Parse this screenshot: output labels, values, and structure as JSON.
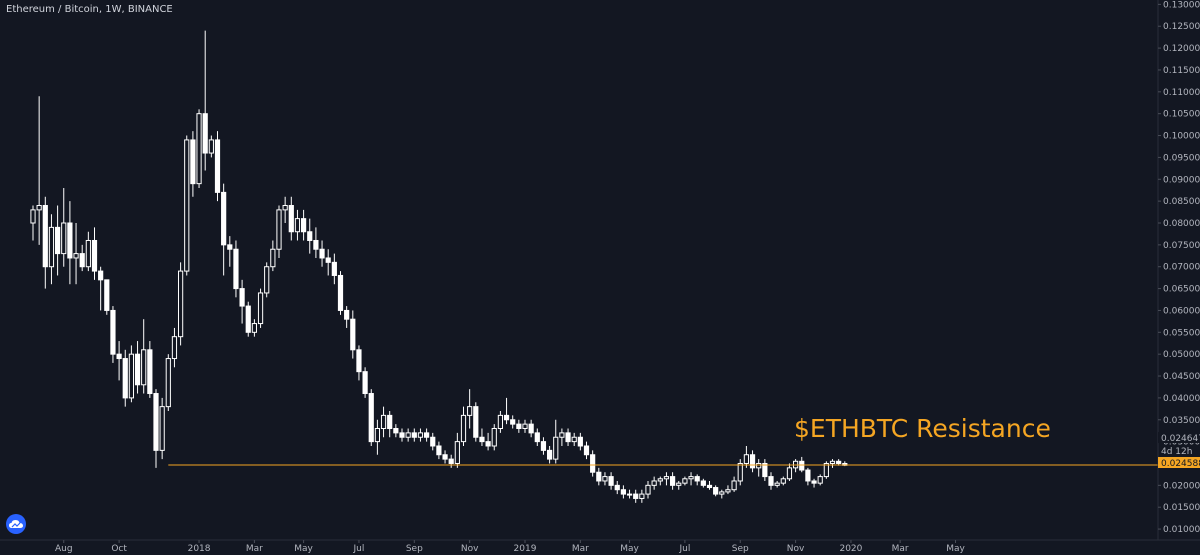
{
  "header": {
    "title": "Ethereum / Bitcoin, 1W, BINANCE"
  },
  "colors": {
    "background": "#131722",
    "candle": "#ffffff",
    "resistance": "#f5a623",
    "axis_text": "#b2b5be",
    "grid": "#1e222d"
  },
  "countdown": "4d 12h",
  "logo_icon": "tradingview-cloud-icon",
  "chart_data": {
    "type": "candlestick",
    "title": "Ethereum / Bitcoin, 1W, BINANCE",
    "ylim": [
      0.0075,
      0.131
    ],
    "y_ticks": [
      0.01,
      0.015,
      0.02,
      0.025,
      0.03,
      0.035,
      0.04,
      0.045,
      0.05,
      0.055,
      0.06,
      0.065,
      0.07,
      0.075,
      0.08,
      0.085,
      0.09,
      0.095,
      0.1,
      0.105,
      0.11,
      0.115,
      0.12,
      0.125,
      0.13
    ],
    "y_tick_labels": [
      "0.010000",
      "0.015000",
      "0.020000",
      "0.025000",
      "0.030000",
      "0.035000",
      "0.040000",
      "0.045000",
      "0.050000",
      "0.055000",
      "0.060000",
      "0.065000",
      "0.070000",
      "0.075000",
      "0.080000",
      "0.085000",
      "0.090000",
      "0.095000",
      "0.100000",
      "0.105000",
      "0.110000",
      "0.115000",
      "0.120000",
      "0.125000",
      "0.130000"
    ],
    "x_ticks": [
      {
        "label": "Aug",
        "index": 5
      },
      {
        "label": "Oct",
        "index": 14
      },
      {
        "label": "2018",
        "index": 27
      },
      {
        "label": "Mar",
        "index": 36
      },
      {
        "label": "May",
        "index": 44
      },
      {
        "label": "Jul",
        "index": 53
      },
      {
        "label": "Sep",
        "index": 62
      },
      {
        "label": "Nov",
        "index": 71
      },
      {
        "label": "2019",
        "index": 80
      },
      {
        "label": "Mar",
        "index": 89
      },
      {
        "label": "May",
        "index": 97
      },
      {
        "label": "Jul",
        "index": 106
      },
      {
        "label": "Sep",
        "index": 115
      },
      {
        "label": "Nov",
        "index": 124
      },
      {
        "label": "2020",
        "index": 133
      },
      {
        "label": "Mar",
        "index": 141
      },
      {
        "label": "May",
        "index": 150
      }
    ],
    "resistance": {
      "value": 0.024647,
      "label": "$ETHBTC Resistance",
      "start_index": 22
    },
    "price_labels": {
      "resistance": "0.024647",
      "last": "0.024588"
    },
    "candles": [
      [
        0.08,
        0.084,
        0.076,
        0.083
      ],
      [
        0.083,
        0.109,
        0.075,
        0.084
      ],
      [
        0.084,
        0.086,
        0.065,
        0.07
      ],
      [
        0.07,
        0.082,
        0.066,
        0.079
      ],
      [
        0.079,
        0.084,
        0.068,
        0.073
      ],
      [
        0.073,
        0.088,
        0.07,
        0.08
      ],
      [
        0.08,
        0.085,
        0.066,
        0.072
      ],
      [
        0.072,
        0.08,
        0.066,
        0.073
      ],
      [
        0.073,
        0.075,
        0.069,
        0.07
      ],
      [
        0.07,
        0.078,
        0.069,
        0.076
      ],
      [
        0.076,
        0.079,
        0.067,
        0.069
      ],
      [
        0.069,
        0.07,
        0.06,
        0.067
      ],
      [
        0.067,
        0.067,
        0.059,
        0.06
      ],
      [
        0.06,
        0.061,
        0.048,
        0.05
      ],
      [
        0.05,
        0.053,
        0.044,
        0.049
      ],
      [
        0.049,
        0.051,
        0.038,
        0.04
      ],
      [
        0.04,
        0.052,
        0.039,
        0.05
      ],
      [
        0.05,
        0.053,
        0.041,
        0.043
      ],
      [
        0.043,
        0.058,
        0.041,
        0.051
      ],
      [
        0.051,
        0.053,
        0.04,
        0.041
      ],
      [
        0.041,
        0.042,
        0.024,
        0.028
      ],
      [
        0.028,
        0.04,
        0.026,
        0.038
      ],
      [
        0.038,
        0.05,
        0.037,
        0.049
      ],
      [
        0.049,
        0.056,
        0.047,
        0.054
      ],
      [
        0.054,
        0.071,
        0.052,
        0.069
      ],
      [
        0.069,
        0.1,
        0.068,
        0.099
      ],
      [
        0.099,
        0.101,
        0.086,
        0.089
      ],
      [
        0.089,
        0.106,
        0.088,
        0.105
      ],
      [
        0.105,
        0.124,
        0.092,
        0.096
      ],
      [
        0.096,
        0.1,
        0.095,
        0.099
      ],
      [
        0.099,
        0.101,
        0.085,
        0.087
      ],
      [
        0.087,
        0.089,
        0.068,
        0.075
      ],
      [
        0.075,
        0.077,
        0.07,
        0.074
      ],
      [
        0.074,
        0.076,
        0.063,
        0.065
      ],
      [
        0.065,
        0.067,
        0.057,
        0.061
      ],
      [
        0.061,
        0.062,
        0.054,
        0.055
      ],
      [
        0.055,
        0.058,
        0.054,
        0.057
      ],
      [
        0.057,
        0.065,
        0.056,
        0.064
      ],
      [
        0.064,
        0.071,
        0.063,
        0.07
      ],
      [
        0.07,
        0.076,
        0.069,
        0.074
      ],
      [
        0.074,
        0.084,
        0.072,
        0.083
      ],
      [
        0.083,
        0.086,
        0.08,
        0.084
      ],
      [
        0.084,
        0.086,
        0.076,
        0.078
      ],
      [
        0.078,
        0.083,
        0.076,
        0.081
      ],
      [
        0.081,
        0.083,
        0.076,
        0.078
      ],
      [
        0.078,
        0.081,
        0.073,
        0.076
      ],
      [
        0.076,
        0.079,
        0.072,
        0.074
      ],
      [
        0.074,
        0.076,
        0.07,
        0.072
      ],
      [
        0.072,
        0.074,
        0.068,
        0.071
      ],
      [
        0.071,
        0.073,
        0.066,
        0.068
      ],
      [
        0.068,
        0.069,
        0.059,
        0.06
      ],
      [
        0.06,
        0.061,
        0.056,
        0.058
      ],
      [
        0.058,
        0.06,
        0.049,
        0.051
      ],
      [
        0.051,
        0.052,
        0.044,
        0.046
      ],
      [
        0.046,
        0.047,
        0.04,
        0.041
      ],
      [
        0.041,
        0.042,
        0.029,
        0.03
      ],
      [
        0.03,
        0.035,
        0.027,
        0.033
      ],
      [
        0.033,
        0.038,
        0.031,
        0.036
      ],
      [
        0.036,
        0.037,
        0.031,
        0.033
      ],
      [
        0.033,
        0.034,
        0.031,
        0.032
      ],
      [
        0.032,
        0.033,
        0.03,
        0.031
      ],
      [
        0.031,
        0.033,
        0.03,
        0.032
      ],
      [
        0.032,
        0.033,
        0.03,
        0.031
      ],
      [
        0.031,
        0.033,
        0.03,
        0.032
      ],
      [
        0.032,
        0.033,
        0.03,
        0.031
      ],
      [
        0.031,
        0.032,
        0.028,
        0.029
      ],
      [
        0.029,
        0.03,
        0.026,
        0.027
      ],
      [
        0.027,
        0.028,
        0.025,
        0.026
      ],
      [
        0.026,
        0.027,
        0.024,
        0.025
      ],
      [
        0.025,
        0.032,
        0.024,
        0.03
      ],
      [
        0.03,
        0.038,
        0.029,
        0.036
      ],
      [
        0.036,
        0.042,
        0.033,
        0.038
      ],
      [
        0.038,
        0.039,
        0.03,
        0.031
      ],
      [
        0.031,
        0.033,
        0.029,
        0.03
      ],
      [
        0.03,
        0.032,
        0.028,
        0.029
      ],
      [
        0.029,
        0.034,
        0.028,
        0.033
      ],
      [
        0.033,
        0.037,
        0.032,
        0.036
      ],
      [
        0.036,
        0.04,
        0.034,
        0.035
      ],
      [
        0.035,
        0.036,
        0.033,
        0.034
      ],
      [
        0.034,
        0.035,
        0.032,
        0.033
      ],
      [
        0.033,
        0.035,
        0.032,
        0.034
      ],
      [
        0.034,
        0.035,
        0.031,
        0.032
      ],
      [
        0.032,
        0.033,
        0.029,
        0.03
      ],
      [
        0.03,
        0.031,
        0.027,
        0.028
      ],
      [
        0.028,
        0.029,
        0.025,
        0.026
      ],
      [
        0.026,
        0.035,
        0.025,
        0.031
      ],
      [
        0.031,
        0.033,
        0.029,
        0.032
      ],
      [
        0.032,
        0.033,
        0.029,
        0.03
      ],
      [
        0.03,
        0.032,
        0.029,
        0.031
      ],
      [
        0.031,
        0.032,
        0.028,
        0.029
      ],
      [
        0.029,
        0.03,
        0.026,
        0.027
      ],
      [
        0.027,
        0.028,
        0.022,
        0.023
      ],
      [
        0.023,
        0.024,
        0.02,
        0.021
      ],
      [
        0.021,
        0.023,
        0.02,
        0.022
      ],
      [
        0.022,
        0.023,
        0.019,
        0.02
      ],
      [
        0.02,
        0.021,
        0.018,
        0.019
      ],
      [
        0.019,
        0.02,
        0.017,
        0.018
      ],
      [
        0.018,
        0.019,
        0.017,
        0.018
      ],
      [
        0.018,
        0.019,
        0.016,
        0.017
      ],
      [
        0.017,
        0.019,
        0.016,
        0.018
      ],
      [
        0.018,
        0.021,
        0.017,
        0.02
      ],
      [
        0.02,
        0.022,
        0.019,
        0.021
      ],
      [
        0.021,
        0.022,
        0.02,
        0.0215
      ],
      [
        0.0215,
        0.023,
        0.02,
        0.022
      ],
      [
        0.022,
        0.023,
        0.019,
        0.02
      ],
      [
        0.02,
        0.021,
        0.019,
        0.0205
      ],
      [
        0.0205,
        0.022,
        0.02,
        0.0215
      ],
      [
        0.0215,
        0.023,
        0.02,
        0.022
      ],
      [
        0.022,
        0.0225,
        0.02,
        0.021
      ],
      [
        0.021,
        0.0215,
        0.0195,
        0.02
      ],
      [
        0.02,
        0.021,
        0.019,
        0.0195
      ],
      [
        0.0195,
        0.02,
        0.0175,
        0.018
      ],
      [
        0.018,
        0.019,
        0.017,
        0.0185
      ],
      [
        0.0185,
        0.02,
        0.018,
        0.019
      ],
      [
        0.019,
        0.022,
        0.0185,
        0.021
      ],
      [
        0.021,
        0.026,
        0.02,
        0.025
      ],
      [
        0.025,
        0.029,
        0.024,
        0.027
      ],
      [
        0.027,
        0.028,
        0.023,
        0.024
      ],
      [
        0.024,
        0.026,
        0.022,
        0.025
      ],
      [
        0.025,
        0.026,
        0.021,
        0.022
      ],
      [
        0.022,
        0.023,
        0.019,
        0.02
      ],
      [
        0.02,
        0.021,
        0.0195,
        0.0205
      ],
      [
        0.0205,
        0.022,
        0.02,
        0.0215
      ],
      [
        0.0215,
        0.025,
        0.021,
        0.024
      ],
      [
        0.024,
        0.026,
        0.023,
        0.0255
      ],
      [
        0.0255,
        0.0265,
        0.023,
        0.0235
      ],
      [
        0.0235,
        0.024,
        0.02,
        0.021
      ],
      [
        0.021,
        0.0215,
        0.0195,
        0.0205
      ],
      [
        0.0205,
        0.0225,
        0.02,
        0.022
      ],
      [
        0.022,
        0.0255,
        0.0215,
        0.025
      ],
      [
        0.025,
        0.026,
        0.024,
        0.0255
      ],
      [
        0.0255,
        0.026,
        0.0245,
        0.025
      ],
      [
        0.025,
        0.0255,
        0.0244,
        0.02459
      ]
    ]
  }
}
